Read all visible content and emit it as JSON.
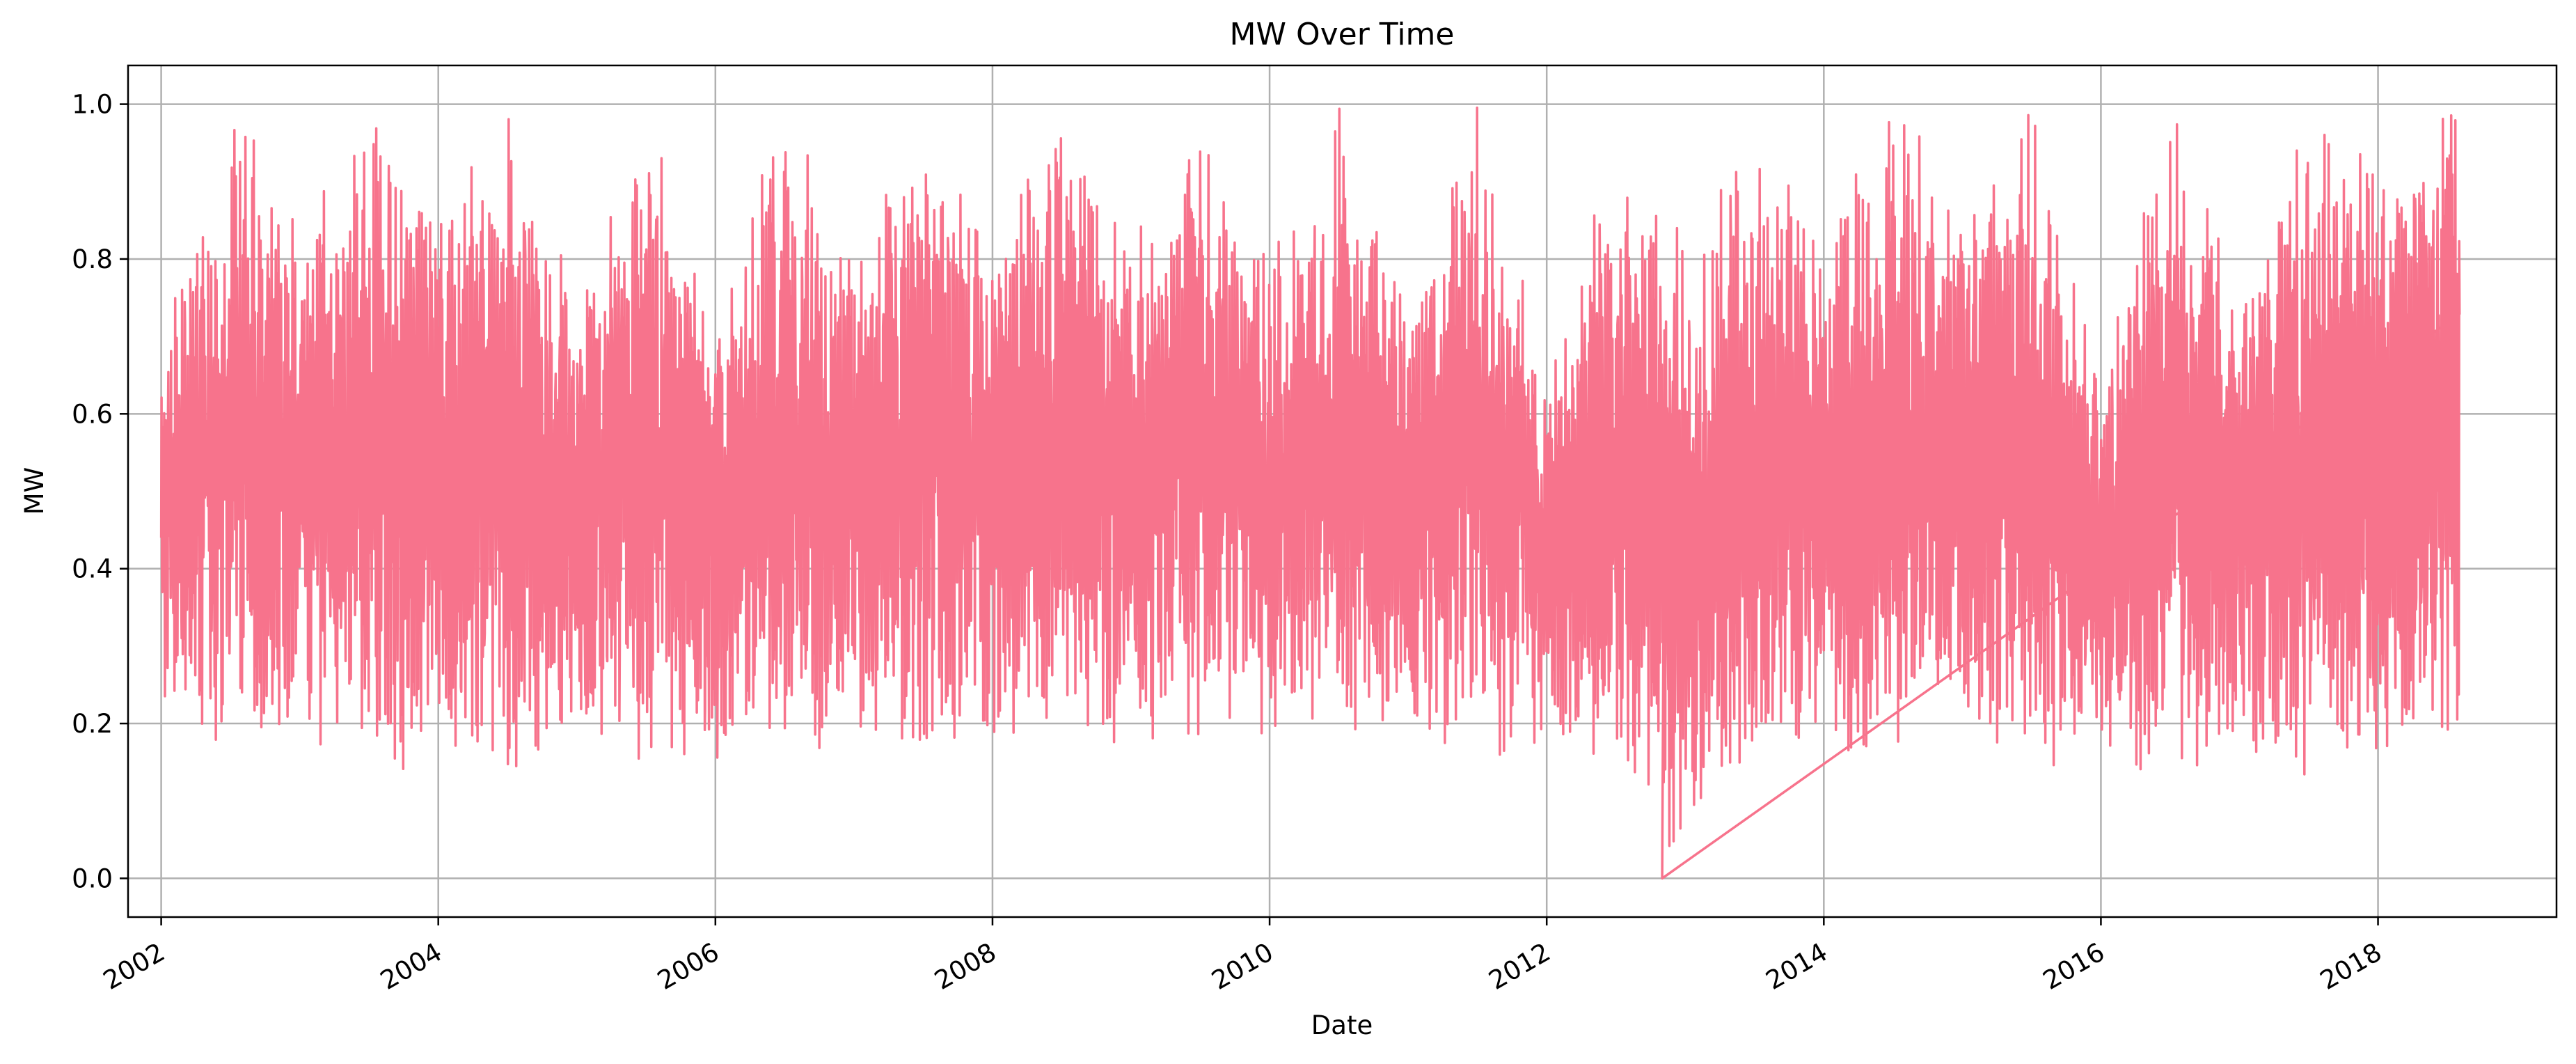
{
  "chart_data": {
    "type": "line",
    "title": "MW Over Time",
    "xlabel": "Date",
    "ylabel": "MW",
    "x_ticks": [
      "2002",
      "2004",
      "2006",
      "2008",
      "2010",
      "2012",
      "2014",
      "2016",
      "2018"
    ],
    "y_ticks": [
      "0.0",
      "0.2",
      "0.4",
      "0.6",
      "0.8",
      "1.0"
    ],
    "xlim": [
      "2001-10-05",
      "2019-04-15"
    ],
    "ylim": [
      -0.05,
      1.05
    ],
    "grid": true,
    "line_color": "#f7738c",
    "data_start": "2002-01-01",
    "data_end": "2018-08-03",
    "summary_series": {
      "x": [
        "2002-01",
        "2002-07",
        "2003-01",
        "2003-07",
        "2004-01",
        "2004-07",
        "2005-01",
        "2005-07",
        "2006-01",
        "2006-07",
        "2007-01",
        "2007-07",
        "2008-01",
        "2008-07",
        "2009-01",
        "2009-07",
        "2010-01",
        "2010-07",
        "2011-01",
        "2011-07",
        "2012-01",
        "2012-07",
        "2013-01",
        "2013-07",
        "2014-01",
        "2014-07",
        "2015-01",
        "2015-07",
        "2016-01",
        "2016-07",
        "2017-01",
        "2017-07",
        "2018-01",
        "2018-07"
      ],
      "max": [
        0.69,
        1.0,
        0.86,
        1.0,
        0.85,
        1.0,
        0.76,
        1.0,
        0.73,
        1.0,
        0.8,
        1.0,
        0.8,
        1.0,
        0.83,
        1.0,
        0.8,
        1.0,
        0.77,
        1.0,
        0.65,
        0.95,
        0.84,
        1.0,
        0.83,
        1.0,
        0.89,
        1.0,
        0.64,
        1.0,
        0.75,
        1.0,
        0.94,
        1.0
      ],
      "min": [
        0.23,
        0.14,
        0.16,
        0.13,
        0.15,
        0.14,
        0.18,
        0.15,
        0.14,
        0.15,
        0.18,
        0.17,
        0.19,
        0.16,
        0.17,
        0.15,
        0.18,
        0.16,
        0.18,
        0.15,
        0.18,
        0.15,
        0.0,
        0.14,
        0.18,
        0.13,
        0.2,
        0.13,
        0.15,
        0.13,
        0.16,
        0.13,
        0.15,
        0.18
      ]
    }
  }
}
